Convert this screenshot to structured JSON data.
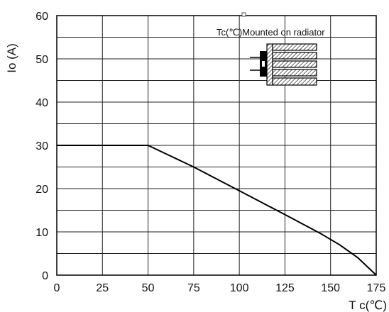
{
  "chart_data": {
    "type": "line",
    "title": "",
    "xlabel": "T c(℃)",
    "ylabel": "Io (A)",
    "xlim": [
      0,
      175
    ],
    "ylim": [
      0,
      60
    ],
    "x_ticks": [
      "0",
      "25",
      "50",
      "75",
      "100",
      "125",
      "150",
      "175"
    ],
    "y_ticks": [
      "0",
      "10",
      "20",
      "30",
      "40",
      "50",
      "60"
    ],
    "grid": true,
    "minor_y_grid_step": 5,
    "annotation": "Tc(℃)Mounted on radiator",
    "annotation_icon": "heatsink-mounted-device-icon",
    "series": [
      {
        "x": [
          0,
          50,
          75,
          100,
          125,
          145,
          155,
          165,
          175
        ],
        "y": [
          30,
          30,
          25,
          19.5,
          14,
          9.5,
          7,
          4,
          0
        ]
      }
    ]
  }
}
